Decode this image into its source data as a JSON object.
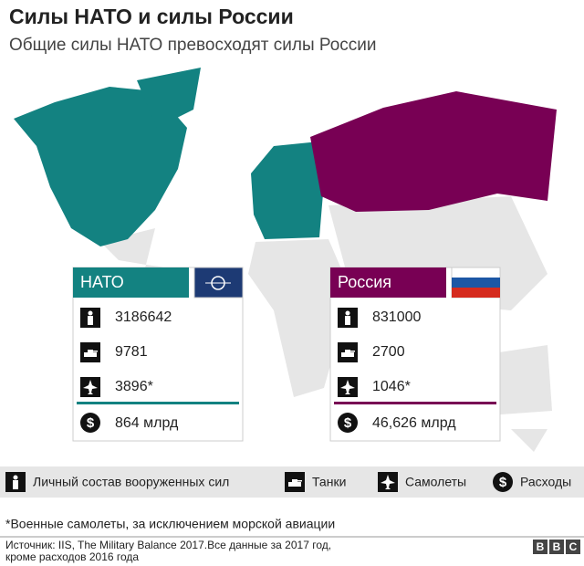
{
  "header": {
    "title": "Силы НАТО и силы России",
    "subtitle": "Общие силы НАТО превосходят силы России"
  },
  "panels": [
    {
      "name": "НАТО",
      "personnel": "3186642",
      "tanks": "9781",
      "aircraft": "3896*",
      "spending": "864 млрд"
    },
    {
      "name": "Россия",
      "personnel": "831000",
      "tanks": "2700",
      "aircraft": "1046*",
      "spending": "46,626 млрд"
    }
  ],
  "legend": [
    "Личный состав вооруженных сил",
    "Танки",
    "Самолеты",
    "Расходы"
  ],
  "footnote": "*Военные самолеты, за исключением морской авиации",
  "source": [
    "Источник: IIS, The Military Balance 2017.Все данные за 2017 год,",
    "кроме расходов 2016 года"
  ],
  "logo": [
    "B",
    "B",
    "C"
  ]
}
